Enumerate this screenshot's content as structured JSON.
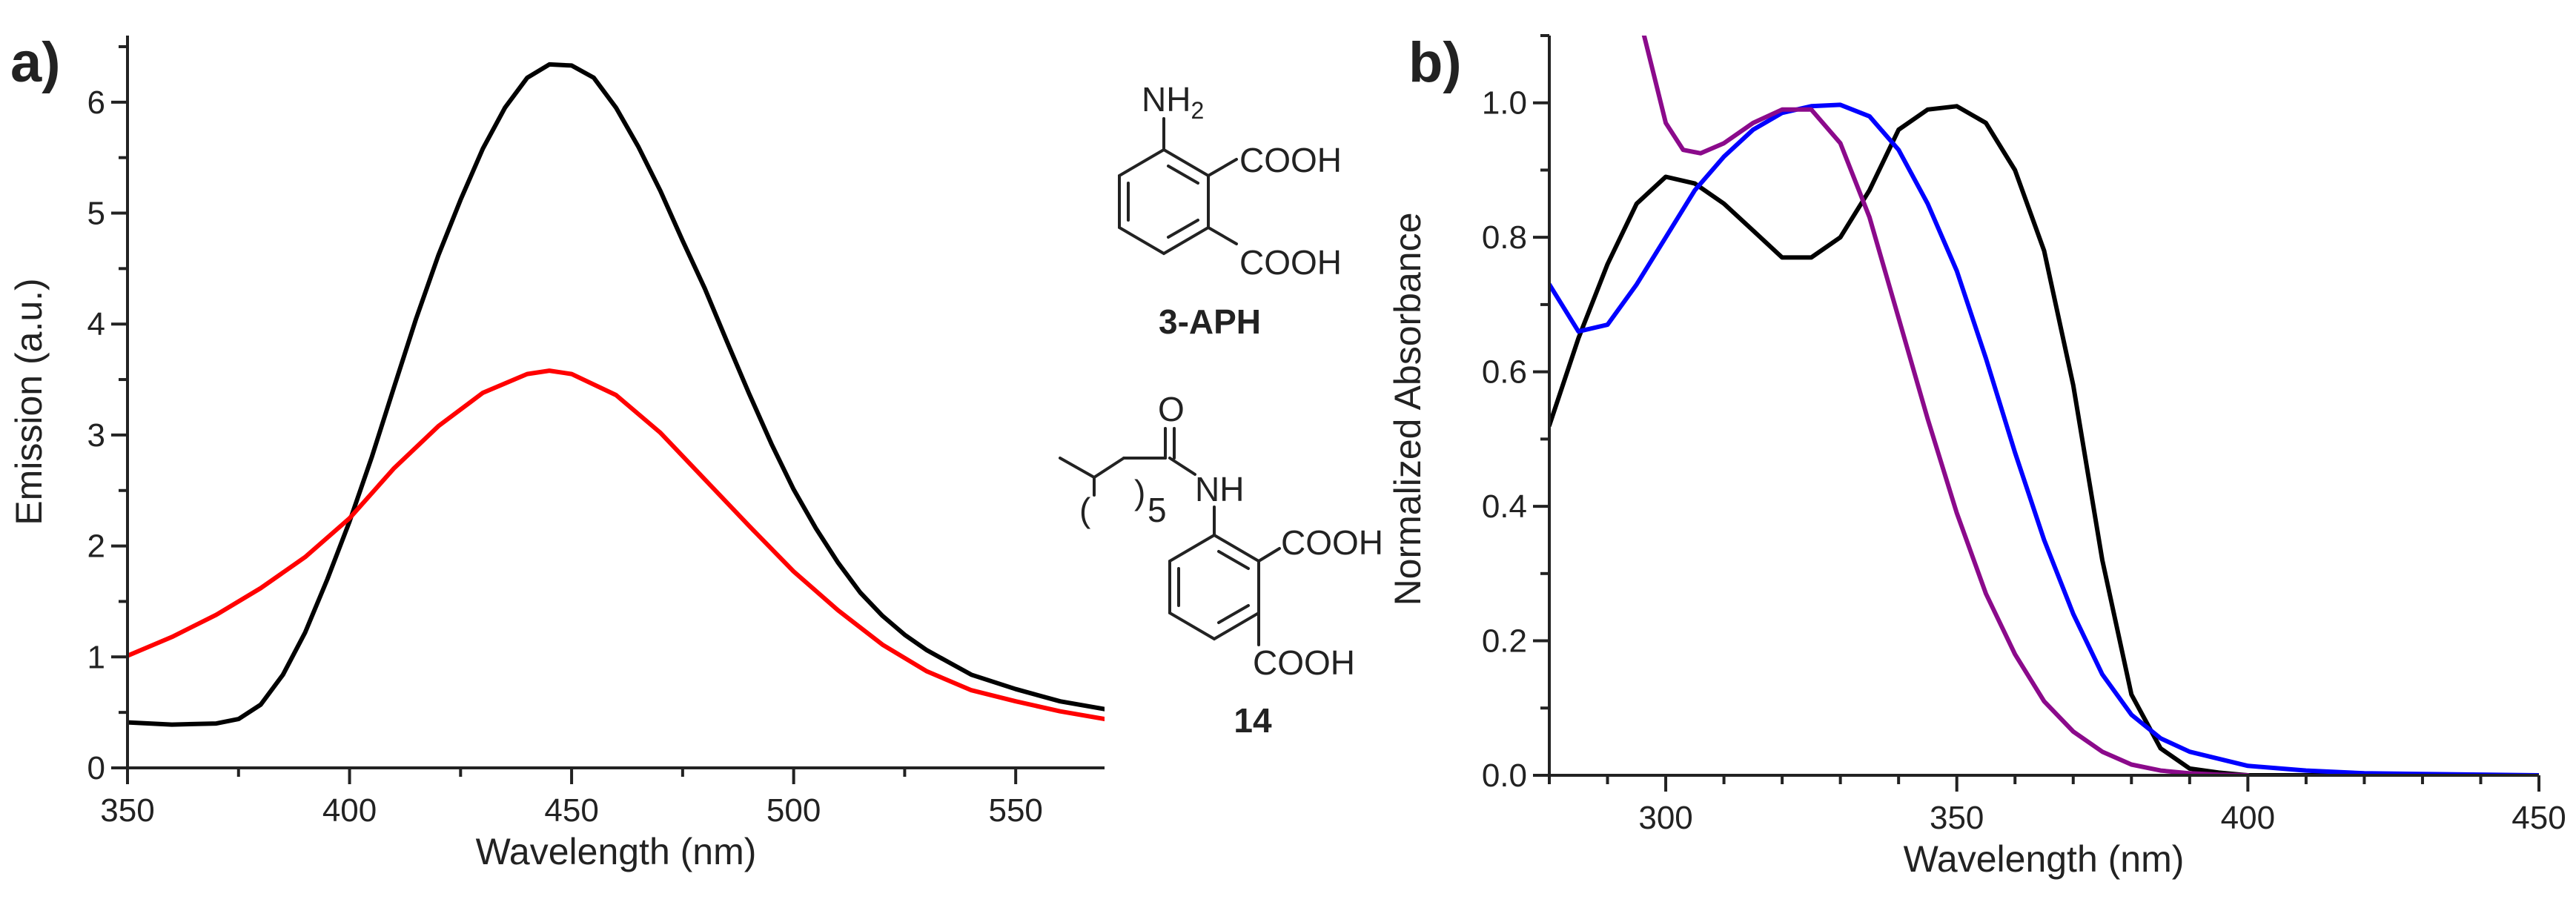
{
  "chart_data": [
    {
      "panel": "a)",
      "type": "line",
      "title": "",
      "xlabel": "Wavelength (nm)",
      "ylabel": "Emission (a.u.)",
      "xlim": [
        350,
        570
      ],
      "ylim": [
        0,
        6.6
      ],
      "xticks": [
        350,
        400,
        450,
        500,
        550
      ],
      "yticks": [
        0,
        1,
        2,
        3,
        4,
        5,
        6
      ],
      "grid": false,
      "legend": "none",
      "series": [
        {
          "name": "3-APH",
          "color": "#000000",
          "x": [
            350,
            360,
            370,
            375,
            380,
            385,
            390,
            395,
            400,
            405,
            410,
            415,
            420,
            425,
            430,
            435,
            440,
            445,
            450,
            455,
            460,
            465,
            470,
            475,
            480,
            485,
            490,
            495,
            500,
            505,
            510,
            515,
            520,
            525,
            530,
            540,
            550,
            560,
            570
          ],
          "y": [
            0.41,
            0.39,
            0.4,
            0.44,
            0.57,
            0.84,
            1.22,
            1.7,
            2.22,
            2.8,
            3.43,
            4.05,
            4.62,
            5.12,
            5.58,
            5.95,
            6.22,
            6.34,
            6.33,
            6.22,
            5.95,
            5.6,
            5.2,
            4.75,
            4.32,
            3.84,
            3.37,
            2.92,
            2.51,
            2.16,
            1.85,
            1.58,
            1.37,
            1.2,
            1.06,
            0.84,
            0.71,
            0.6,
            0.53
          ]
        },
        {
          "name": "14",
          "color": "#ff0000",
          "x": [
            350,
            360,
            370,
            380,
            390,
            400,
            410,
            420,
            430,
            440,
            445,
            450,
            460,
            470,
            480,
            490,
            500,
            510,
            520,
            530,
            540,
            550,
            560,
            570
          ],
          "y": [
            1.01,
            1.18,
            1.38,
            1.62,
            1.9,
            2.25,
            2.7,
            3.08,
            3.38,
            3.55,
            3.58,
            3.55,
            3.36,
            3.02,
            2.6,
            2.18,
            1.77,
            1.42,
            1.11,
            0.87,
            0.7,
            0.6,
            0.51,
            0.44
          ]
        }
      ],
      "annotations": {
        "compound1": {
          "amine": "NH",
          "amine_sub": "2",
          "acid_top": "COOH",
          "acid_bottom": "COOH",
          "label": "3-APH"
        },
        "compound2": {
          "carbonyl_o": "O",
          "chain_sub": "5",
          "amide_nh": "NH",
          "acid_top": "COOH",
          "acid_bottom": "COOH",
          "label": "14"
        }
      }
    },
    {
      "panel": "b)",
      "type": "line",
      "title": "",
      "xlabel": "Wavelength (nm)",
      "ylabel": "Normalized Absorbance",
      "xlim": [
        280,
        450
      ],
      "ylim": [
        0,
        1.1
      ],
      "xticks": [
        300,
        350,
        400,
        450
      ],
      "yticks": [
        0.0,
        0.2,
        0.4,
        0.6,
        0.8,
        1.0
      ],
      "grid": false,
      "legend": "none",
      "series": [
        {
          "name": "black",
          "color": "#000000",
          "x": [
            280,
            285,
            290,
            295,
            300,
            305,
            310,
            315,
            320,
            325,
            330,
            335,
            340,
            345,
            350,
            355,
            360,
            365,
            370,
            375,
            380,
            385,
            390,
            395,
            400,
            410,
            420,
            450
          ],
          "y": [
            0.52,
            0.65,
            0.76,
            0.85,
            0.89,
            0.88,
            0.85,
            0.81,
            0.77,
            0.77,
            0.8,
            0.87,
            0.96,
            0.99,
            0.995,
            0.97,
            0.9,
            0.78,
            0.58,
            0.32,
            0.12,
            0.04,
            0.01,
            0.004,
            0.0,
            0.0,
            0.0,
            0.0
          ]
        },
        {
          "name": "blue",
          "color": "#0000ff",
          "x": [
            280,
            285,
            290,
            295,
            300,
            305,
            310,
            315,
            320,
            325,
            330,
            335,
            340,
            345,
            350,
            355,
            360,
            365,
            370,
            375,
            380,
            385,
            390,
            400,
            410,
            420,
            430,
            440,
            450
          ],
          "y": [
            0.73,
            0.66,
            0.67,
            0.73,
            0.8,
            0.87,
            0.92,
            0.96,
            0.985,
            0.995,
            0.997,
            0.98,
            0.93,
            0.85,
            0.75,
            0.62,
            0.48,
            0.35,
            0.24,
            0.15,
            0.09,
            0.055,
            0.035,
            0.014,
            0.007,
            0.003,
            0.002,
            0.001,
            0.0
          ]
        },
        {
          "name": "purple",
          "color": "#8b0a8b",
          "x": [
            296,
            298,
            300,
            303,
            306,
            310,
            315,
            320,
            325,
            330,
            335,
            340,
            345,
            350,
            355,
            360,
            365,
            370,
            375,
            380,
            385,
            390,
            395,
            400
          ],
          "y": [
            1.11,
            1.04,
            0.97,
            0.93,
            0.925,
            0.94,
            0.97,
            0.99,
            0.99,
            0.94,
            0.83,
            0.68,
            0.53,
            0.39,
            0.27,
            0.18,
            0.11,
            0.065,
            0.035,
            0.016,
            0.007,
            0.003,
            0.001,
            0.0
          ]
        }
      ]
    }
  ]
}
